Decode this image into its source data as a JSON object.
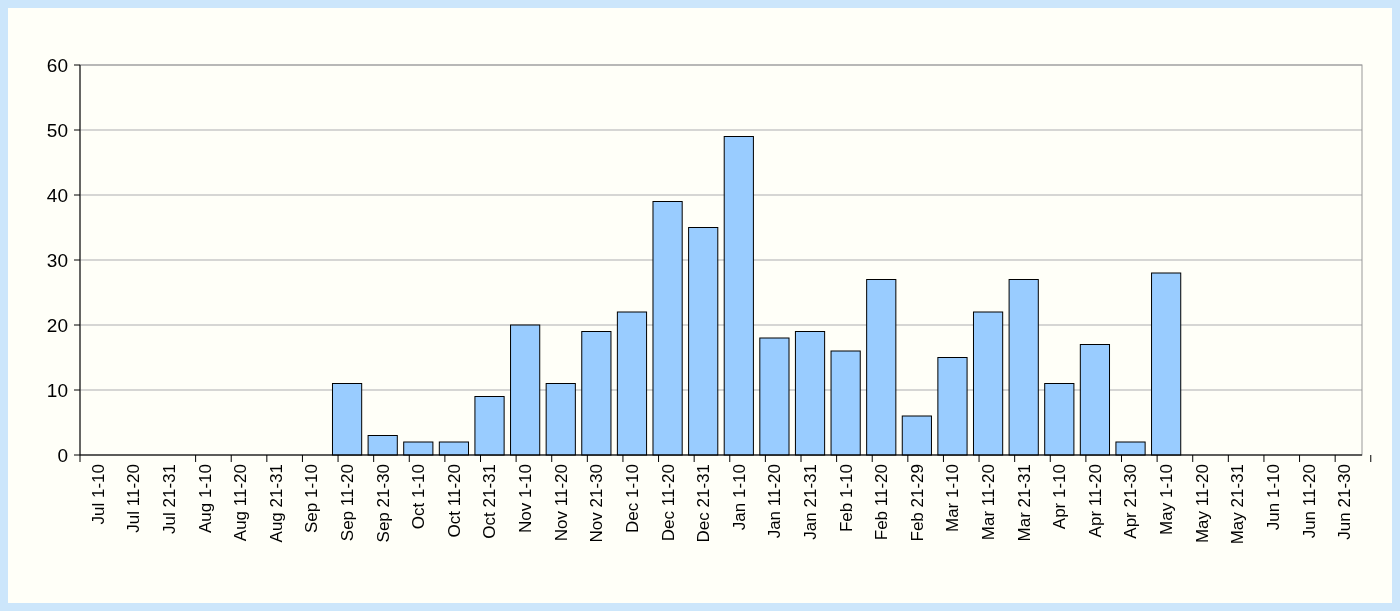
{
  "chart_data": {
    "type": "bar",
    "categories": [
      "Jul 1-10",
      "Jul 11-20",
      "Jul 21-31",
      "Aug 1-10",
      "Aug 11-20",
      "Aug 21-31",
      "Sep 1-10",
      "Sep 11-20",
      "Sep 21-30",
      "Oct 1-10",
      "Oct 11-20",
      "Oct 21-31",
      "Nov 1-10",
      "Nov 11-20",
      "Nov 21-30",
      "Dec 1-10",
      "Dec 11-20",
      "Dec 21-31",
      "Jan 1-10",
      "Jan 11-20",
      "Jan 21-31",
      "Feb 1-10",
      "Feb 11-20",
      "Feb 21-29",
      "Mar 1-10",
      "Mar 11-20",
      "Mar 21-31",
      "Apr 1-10",
      "Apr 11-20",
      "Apr 21-30",
      "May 1-10",
      "May 11-20",
      "May 21-31",
      "Jun 1-10",
      "Jun 11-20",
      "Jun 21-30"
    ],
    "values": [
      0,
      0,
      0,
      0,
      0,
      0,
      0,
      11,
      3,
      2,
      2,
      9,
      20,
      11,
      19,
      22,
      39,
      35,
      49,
      18,
      19,
      16,
      27,
      6,
      15,
      22,
      27,
      11,
      17,
      2,
      28,
      0,
      0,
      0,
      0,
      0
    ],
    "color": "#99ccff",
    "ylim": [
      0,
      60
    ],
    "yticks": [
      0,
      10,
      20,
      30,
      40,
      50,
      60
    ],
    "grid": "y"
  }
}
